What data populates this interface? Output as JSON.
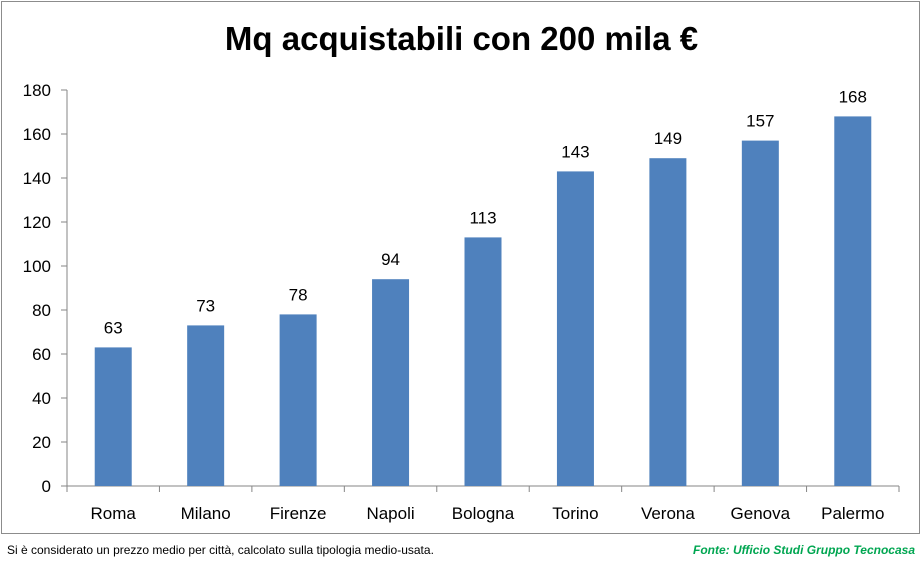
{
  "chart_data": {
    "type": "bar",
    "title": "Mq acquistabili con 200 mila €",
    "xlabel": "",
    "ylabel": "",
    "categories": [
      "Roma",
      "Milano",
      "Firenze",
      "Napoli",
      "Bologna",
      "Torino",
      "Verona",
      "Genova",
      "Palermo"
    ],
    "values": [
      63,
      73,
      78,
      94,
      113,
      143,
      149,
      157,
      168
    ],
    "ylim": [
      0,
      180
    ],
    "ytick_step": 20,
    "grid": false,
    "legend": "none",
    "bar_color": "#4f81bd",
    "data_labels": true
  },
  "footnote": "Si è considerato un prezzo medio per città, calcolato sulla tipologia medio-usata.",
  "source": "Fonte: Ufficio Studi Gruppo Tecnocasa",
  "source_color": "#00a651"
}
